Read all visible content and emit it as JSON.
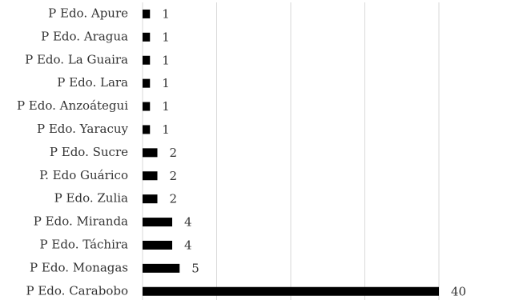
{
  "chart_data": {
    "type": "bar",
    "orientation": "horizontal",
    "title": "",
    "xlabel": "",
    "ylabel": "",
    "categories": [
      "P Edo. Apure",
      "P Edo. Aragua",
      "P Edo. La Guaira",
      "P Edo. Lara",
      "P Edo. Anzoátegui",
      "P Edo. Yaracuy",
      "P Edo. Sucre",
      "P. Edo Guárico",
      "P Edo. Zulia",
      "P Edo. Miranda",
      "P Edo. Táchira",
      "P Edo. Monagas",
      "P Edo. Carabobo"
    ],
    "values": [
      1,
      1,
      1,
      1,
      1,
      1,
      2,
      2,
      2,
      4,
      4,
      5,
      40
    ],
    "xlim": [
      0,
      40
    ],
    "gridlines": true,
    "grid_interval": 10,
    "legend": "none",
    "colors": {
      "bar": "#000000",
      "grid": "#d9d9d9",
      "text": "#333333"
    }
  }
}
